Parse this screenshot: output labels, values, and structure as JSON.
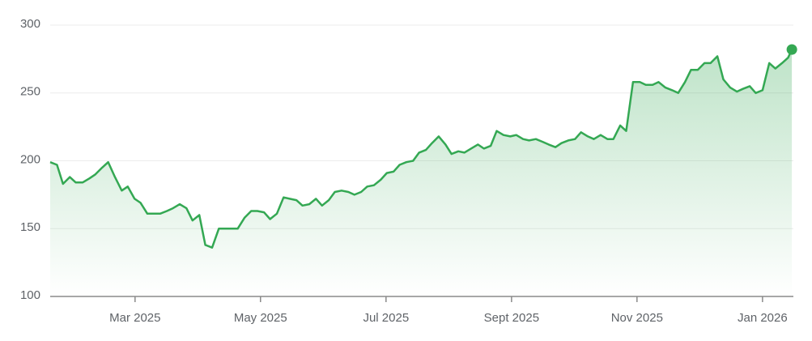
{
  "chart_data": {
    "type": "line",
    "color": "#34a853",
    "grid": true,
    "x": [
      2025.054,
      2025.063,
      2025.071,
      2025.08,
      2025.088,
      2025.097,
      2025.106,
      2025.114,
      2025.123,
      2025.131,
      2025.14,
      2025.149,
      2025.157,
      2025.166,
      2025.174,
      2025.183,
      2025.192,
      2025.2,
      2025.209,
      2025.217,
      2025.226,
      2025.235,
      2025.243,
      2025.252,
      2025.26,
      2025.269,
      2025.278,
      2025.286,
      2025.295,
      2025.303,
      2025.312,
      2025.321,
      2025.329,
      2025.338,
      2025.346,
      2025.355,
      2025.364,
      2025.372,
      2025.381,
      2025.389,
      2025.398,
      2025.407,
      2025.415,
      2025.424,
      2025.432,
      2025.441,
      2025.45,
      2025.458,
      2025.467,
      2025.475,
      2025.484,
      2025.493,
      2025.501,
      2025.51,
      2025.518,
      2025.527,
      2025.536,
      2025.544,
      2025.553,
      2025.561,
      2025.57,
      2025.579,
      2025.587,
      2025.596,
      2025.604,
      2025.613,
      2025.622,
      2025.63,
      2025.639,
      2025.647,
      2025.656,
      2025.665,
      2025.673,
      2025.682,
      2025.69,
      2025.699,
      2025.708,
      2025.716,
      2025.725,
      2025.733,
      2025.742,
      2025.751,
      2025.759,
      2025.768,
      2025.776,
      2025.785,
      2025.794,
      2025.802,
      2025.811,
      2025.819,
      2025.828,
      2025.837,
      2025.845,
      2025.854,
      2025.862,
      2025.871,
      2025.88,
      2025.888,
      2025.897,
      2025.905,
      2025.914,
      2025.923,
      2025.931,
      2025.94,
      2025.948,
      2025.957,
      2025.966,
      2025.974,
      2025.983,
      2025.991,
      2026.0,
      2026.009,
      2026.017,
      2026.026,
      2026.034,
      2026.039
    ],
    "series": [
      {
        "values": [
          199,
          197,
          183,
          188,
          184,
          184,
          187,
          190,
          195,
          199,
          188,
          178,
          181,
          172,
          169,
          161,
          161,
          161,
          163,
          165,
          168,
          165,
          156,
          160,
          138,
          136,
          150,
          150,
          150,
          150,
          158,
          163,
          163,
          162,
          157,
          161,
          173,
          172,
          171,
          167,
          168,
          172,
          167,
          171,
          177,
          178,
          177,
          175,
          177,
          181,
          182,
          186,
          191,
          192,
          197,
          199,
          200,
          206,
          208,
          213,
          218,
          212,
          205,
          207,
          206,
          209,
          212,
          209,
          211,
          222,
          219,
          218,
          219,
          216,
          215,
          216,
          214,
          212,
          210,
          213,
          215,
          216,
          221,
          218,
          216,
          219,
          216,
          216,
          226,
          222,
          258,
          258,
          256,
          256,
          258,
          254,
          252,
          250,
          258,
          267,
          267,
          272,
          272,
          277,
          260,
          254,
          251,
          253,
          255,
          250,
          252,
          272,
          268,
          272,
          276,
          282
        ]
      }
    ],
    "xlim": [
      2025.054,
      2026.041
    ],
    "xticks": [
      {
        "value": 2025.1667,
        "label": "Mar 2025"
      },
      {
        "value": 2025.3333,
        "label": "May 2025"
      },
      {
        "value": 2025.5,
        "label": "Jul 2025"
      },
      {
        "value": 2025.6667,
        "label": "Sept 2025"
      },
      {
        "value": 2025.8333,
        "label": "Nov 2025"
      },
      {
        "value": 2026.0,
        "label": "Jan 2026"
      }
    ],
    "ylim": [
      100,
      300
    ],
    "yticks": [
      100,
      150,
      200,
      250,
      300
    ]
  }
}
